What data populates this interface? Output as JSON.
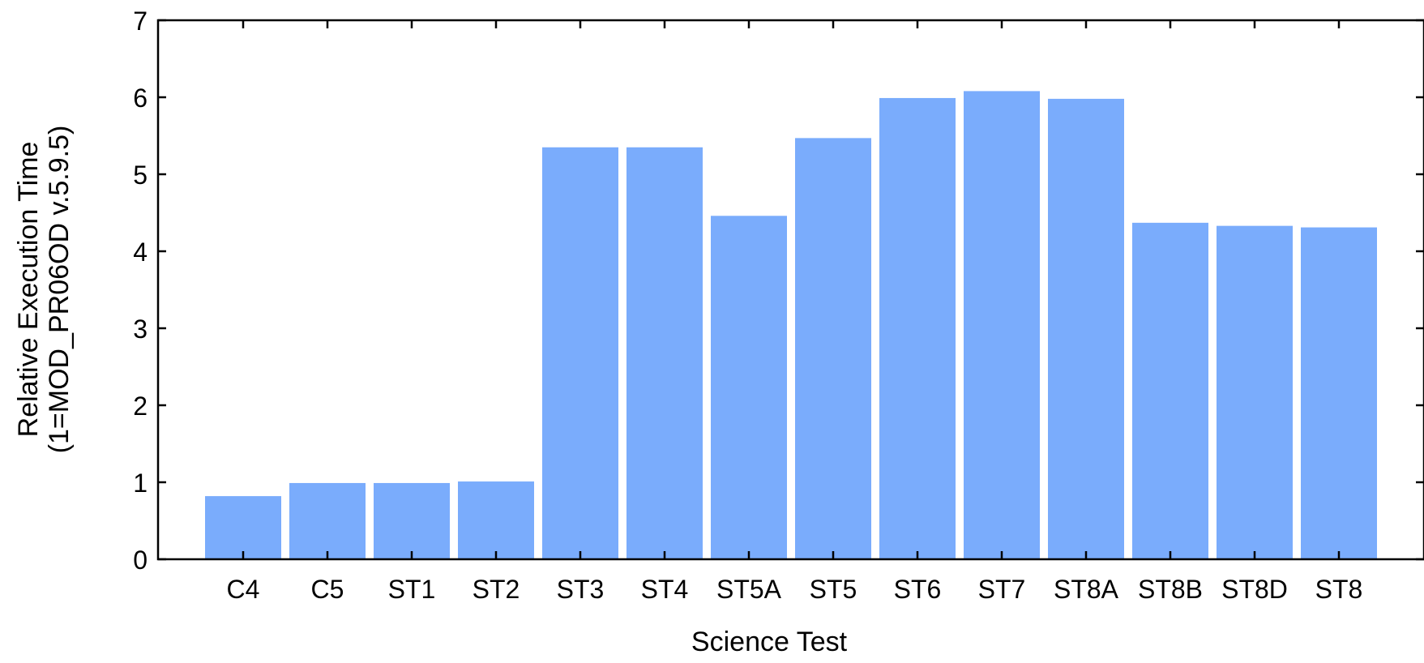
{
  "chart_data": {
    "type": "bar",
    "title": "",
    "xlabel": "Science Test",
    "ylabel_lines": [
      "Relative Execution Time",
      "(1=MOD_PR06OD v.5.9.5)"
    ],
    "categories": [
      "C4",
      "C5",
      "ST1",
      "ST2",
      "ST3",
      "ST4",
      "ST5A",
      "ST5",
      "ST6",
      "ST7",
      "ST8A",
      "ST8B",
      "ST8D",
      "ST8"
    ],
    "values": [
      0.82,
      0.99,
      0.99,
      1.01,
      5.35,
      5.35,
      4.46,
      5.47,
      5.99,
      6.08,
      5.98,
      4.37,
      4.33,
      4.31
    ],
    "ylim": [
      0,
      7
    ],
    "yticks": [
      "0",
      "1",
      "2",
      "3",
      "4",
      "5",
      "6",
      "7"
    ],
    "grid": false,
    "bar_color": "#7aacfc"
  }
}
